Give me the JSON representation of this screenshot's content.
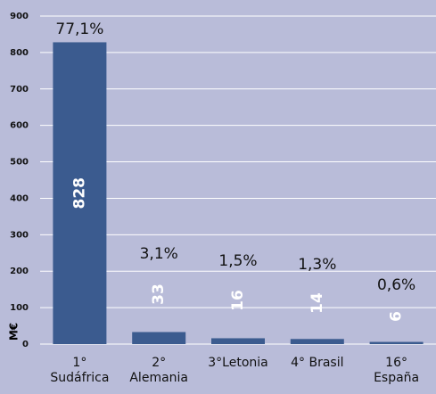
{
  "chart_data": {
    "type": "bar",
    "categories": [
      "1°\nSudáfrica",
      "2°\nAlemania",
      "3°Letonia",
      "4° Brasil",
      "16°\nEspaña"
    ],
    "values": [
      828,
      33,
      16,
      14,
      6
    ],
    "annotations": [
      "77,1%",
      "3,1%",
      "1,5%",
      "1,3%",
      "0,6%"
    ],
    "color": "#3b5b8f",
    "y_label": "M€",
    "ylim": [
      0,
      900
    ],
    "yticks": [
      0,
      100,
      200,
      300,
      400,
      500,
      600,
      700,
      800,
      900
    ],
    "grid": true
  }
}
